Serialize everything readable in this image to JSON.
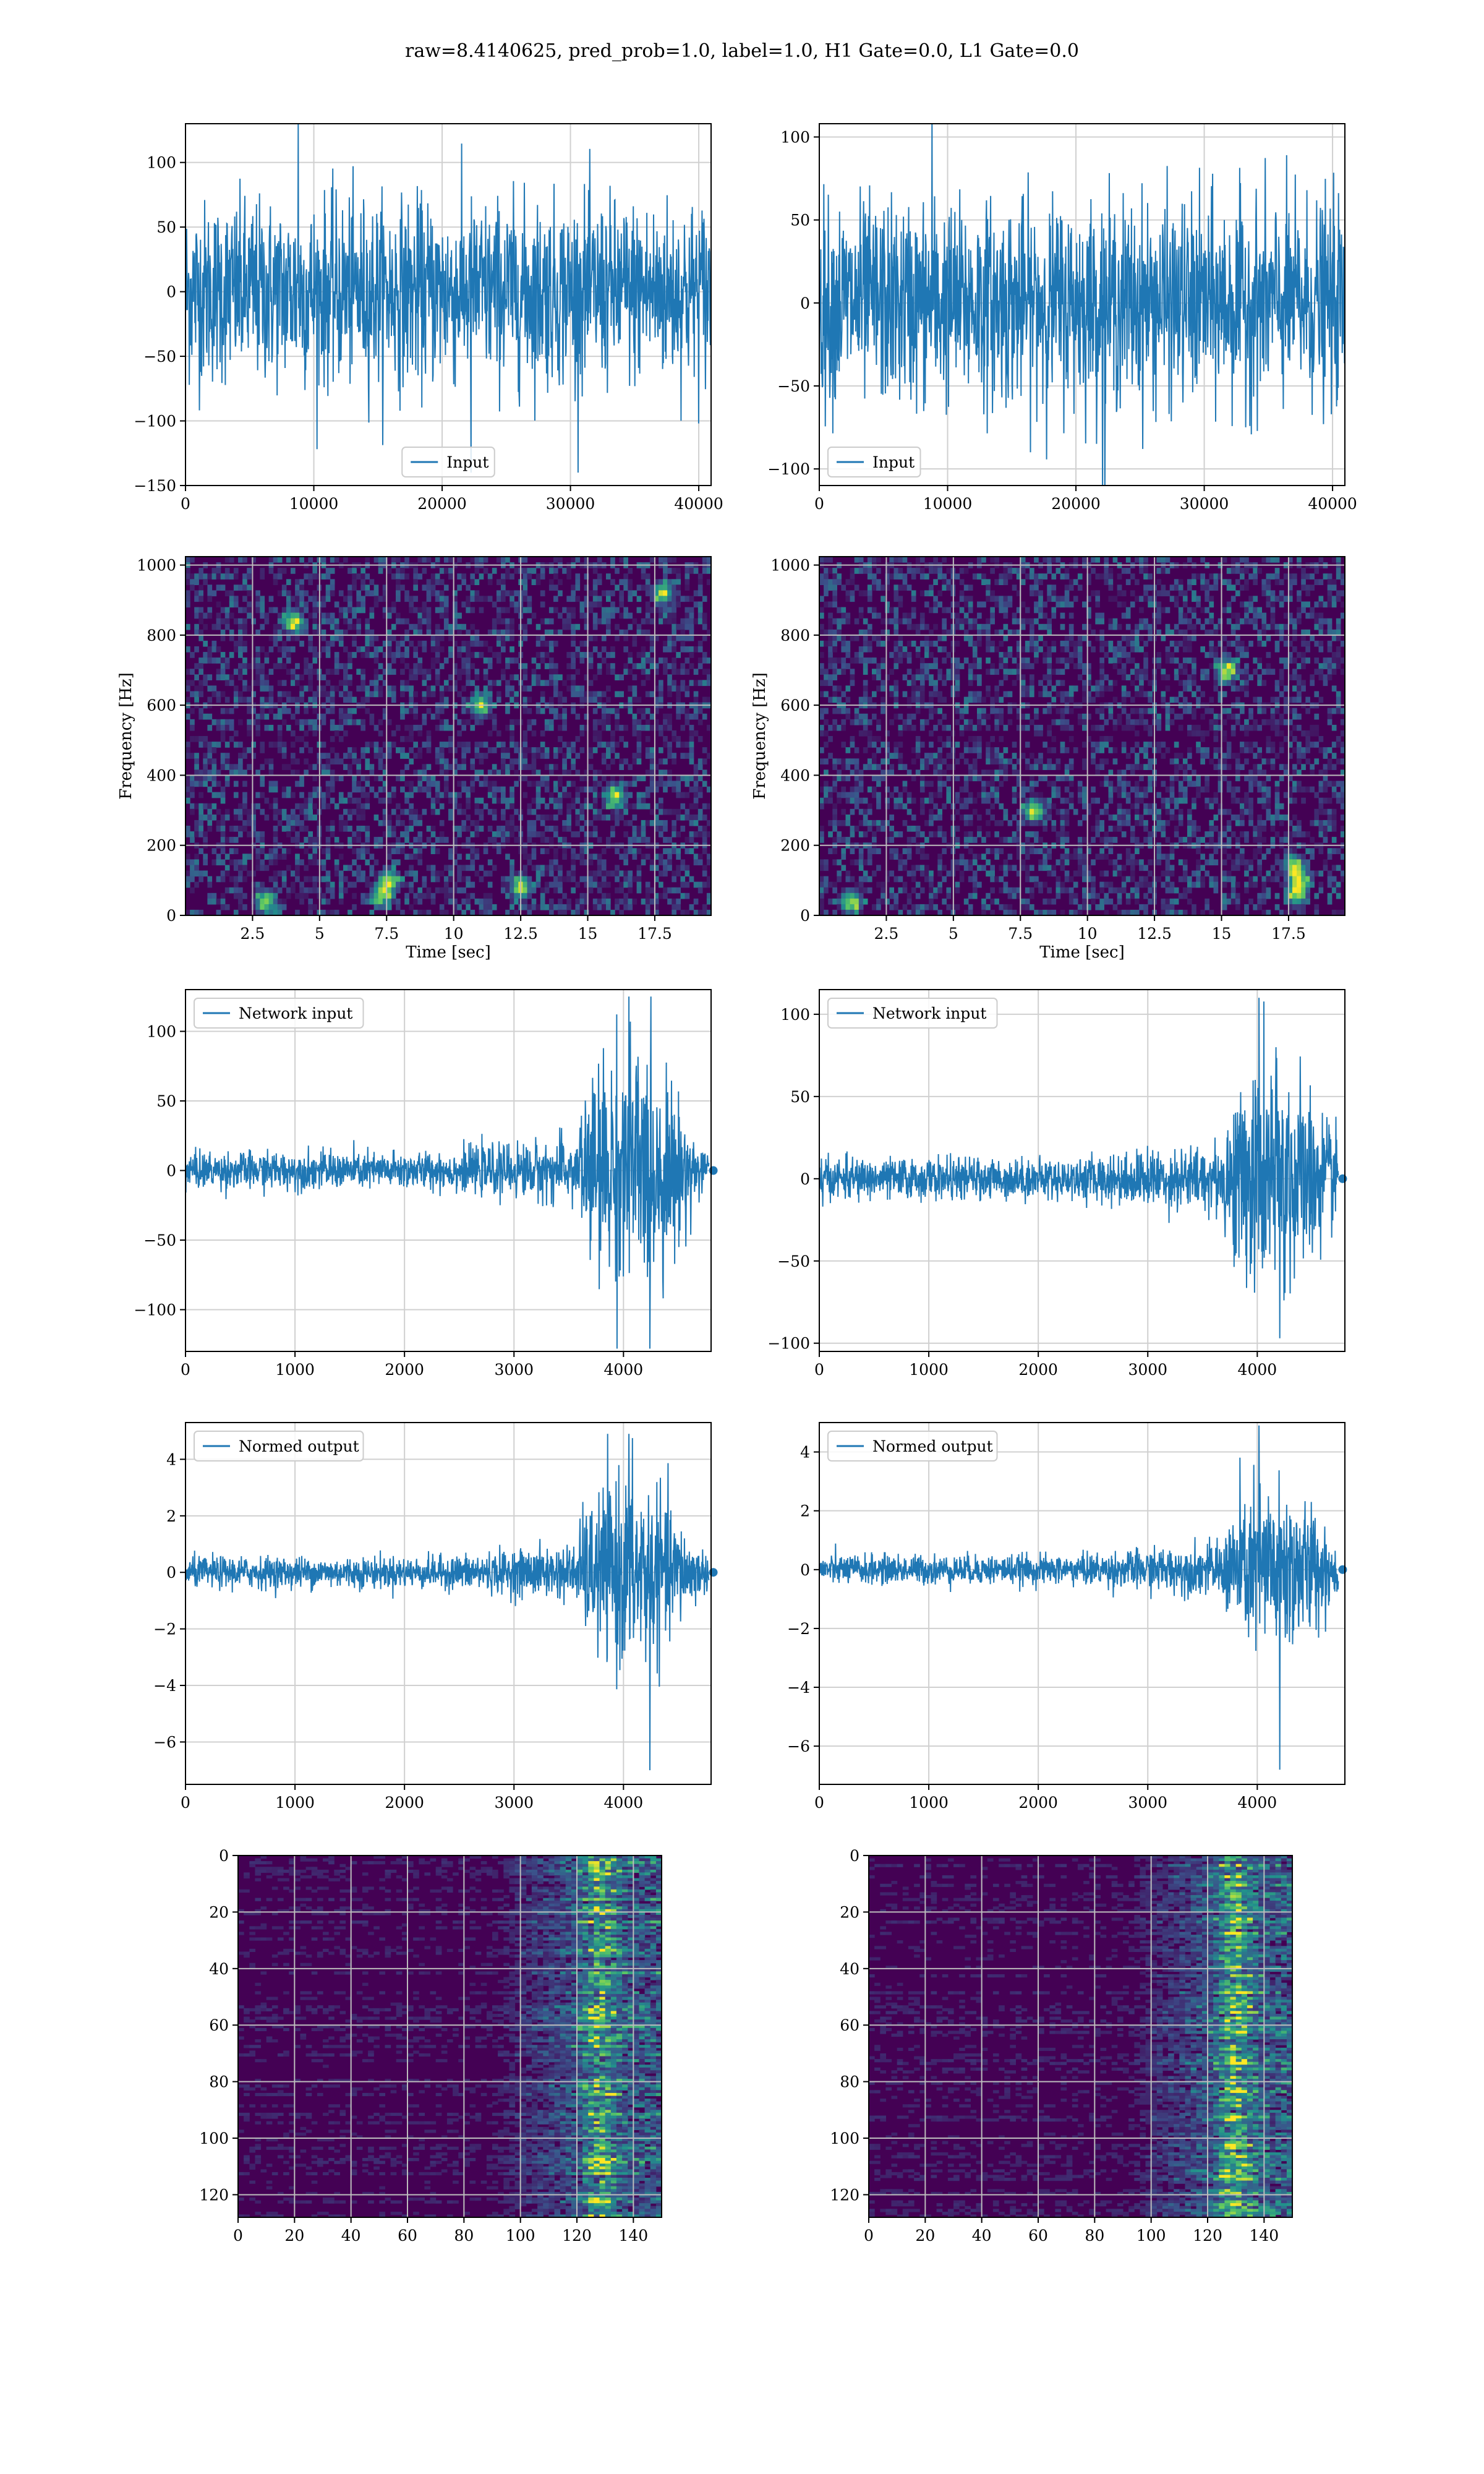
{
  "figure": {
    "suptitle": "raw=8.4140625, pred_prob=1.0, label=1.0, H1 Gate=0.0, L1 Gate=0.0"
  },
  "colors": {
    "line": "#1f77b4",
    "grid": "#d0d0d0",
    "viridis_dark": "#440154",
    "viridis_mid": "#21918c",
    "viridis_bright": "#fde725"
  },
  "chart_data": [
    {
      "type": "line",
      "id": "raw-h1",
      "column": 0,
      "row": 0,
      "legend": [
        "Input"
      ],
      "legend_loc": "lower center",
      "xlim": [
        0,
        40960
      ],
      "ylim": [
        -150,
        130
      ],
      "xticks": [
        0,
        10000,
        20000,
        30000,
        40000
      ],
      "yticks": [
        -150,
        -100,
        -50,
        0,
        50,
        100
      ],
      "signal": {
        "kind": "noise",
        "amp": 35,
        "peak": 130,
        "trough": -140
      }
    },
    {
      "type": "line",
      "id": "raw-l1",
      "column": 1,
      "row": 0,
      "legend": [
        "Input"
      ],
      "legend_loc": "lower left",
      "xlim": [
        0,
        40960
      ],
      "ylim": [
        -110,
        108
      ],
      "xticks": [
        0,
        10000,
        20000,
        30000,
        40000
      ],
      "yticks": [
        -100,
        -50,
        0,
        50,
        100
      ],
      "signal": {
        "kind": "noise",
        "amp": 30,
        "peak": 115,
        "trough": -120
      }
    },
    {
      "type": "heatmap",
      "id": "spec-h1",
      "column": 0,
      "row": 1,
      "xlabel": "Time [sec]",
      "ylabel": "Frequency [Hz]",
      "xlim": [
        0,
        19.6
      ],
      "ylim": [
        0,
        1024
      ],
      "xticks": [
        2.5,
        5.0,
        7.5,
        10.0,
        12.5,
        15.0,
        17.5
      ],
      "yticks": [
        0,
        200,
        400,
        600,
        800,
        1000
      ],
      "hotspots": [
        [
          3.0,
          40
        ],
        [
          7.3,
          60
        ],
        [
          7.6,
          100
        ],
        [
          16.0,
          340
        ],
        [
          11.0,
          600
        ],
        [
          12.5,
          80
        ],
        [
          4.0,
          840
        ],
        [
          17.8,
          920
        ]
      ]
    },
    {
      "type": "heatmap",
      "id": "spec-l1",
      "column": 1,
      "row": 1,
      "xlabel": "Time [sec]",
      "ylabel": "Frequency [Hz]",
      "xlim": [
        0,
        19.6
      ],
      "ylim": [
        0,
        1024
      ],
      "xticks": [
        2.5,
        5.0,
        7.5,
        10.0,
        12.5,
        15.0,
        17.5
      ],
      "yticks": [
        0,
        200,
        400,
        600,
        800,
        1000
      ],
      "hotspots": [
        [
          1.2,
          40
        ],
        [
          17.8,
          60
        ],
        [
          17.9,
          100
        ],
        [
          17.7,
          140
        ],
        [
          15.2,
          700
        ],
        [
          8.0,
          300
        ]
      ]
    },
    {
      "type": "line",
      "id": "net-h1",
      "column": 0,
      "row": 2,
      "legend": [
        "Network input"
      ],
      "legend_loc": "upper left",
      "xlim": [
        0,
        4800
      ],
      "ylim": [
        -130,
        130
      ],
      "xticks": [
        0,
        1000,
        2000,
        3000,
        4000,
        5000
      ],
      "yticks": [
        -100,
        -50,
        0,
        50,
        100
      ],
      "signal": {
        "kind": "chirp",
        "n": 4780,
        "base": 12,
        "rise_start": 2300,
        "burst_start": 3600,
        "burst_amp": 75,
        "peak": 125,
        "trough": -128
      }
    },
    {
      "type": "line",
      "id": "net-l1",
      "column": 1,
      "row": 2,
      "legend": [
        "Network input"
      ],
      "legend_loc": "upper left",
      "xlim": [
        0,
        4800
      ],
      "ylim": [
        -105,
        115
      ],
      "xticks": [
        0,
        1000,
        2000,
        3000,
        4000,
        5000
      ],
      "yticks": [
        -100,
        -50,
        0,
        50,
        100
      ],
      "signal": {
        "kind": "chirp",
        "n": 4740,
        "base": 11,
        "rise_start": 2300,
        "burst_start": 3700,
        "burst_amp": 60,
        "peak": 110,
        "trough": -97
      }
    },
    {
      "type": "line",
      "id": "norm-h1",
      "column": 0,
      "row": 3,
      "legend": [
        "Normed output"
      ],
      "legend_loc": "upper left",
      "xlim": [
        0,
        4800
      ],
      "ylim": [
        -7.5,
        5.3
      ],
      "xticks": [
        0,
        1000,
        2000,
        3000,
        4000,
        5000
      ],
      "yticks": [
        -6,
        -4,
        -2,
        0,
        2,
        4
      ],
      "signal": {
        "kind": "chirp",
        "n": 4780,
        "base": 0.5,
        "rise_start": 2300,
        "burst_start": 3600,
        "burst_amp": 2.8,
        "peak": 4.9,
        "trough": -7.0
      }
    },
    {
      "type": "line",
      "id": "norm-l1",
      "column": 1,
      "row": 3,
      "legend": [
        "Normed output"
      ],
      "legend_loc": "upper left",
      "xlim": [
        0,
        4800
      ],
      "ylim": [
        -7.3,
        5.0
      ],
      "xticks": [
        0,
        1000,
        2000,
        3000,
        4000,
        5000
      ],
      "yticks": [
        -6,
        -4,
        -2,
        0,
        2,
        4
      ],
      "signal": {
        "kind": "chirp",
        "n": 4740,
        "base": 0.45,
        "rise_start": 2300,
        "burst_start": 3700,
        "burst_amp": 2.5,
        "peak": 4.9,
        "trough": -6.8
      }
    },
    {
      "type": "heatmap",
      "id": "feat-h1",
      "column": 0,
      "row": 4,
      "xlim": [
        0,
        150
      ],
      "ylim": [
        0,
        128
      ],
      "y_inverted": true,
      "xticks": [
        0,
        20,
        40,
        60,
        80,
        100,
        120,
        140
      ],
      "yticks": [
        0,
        20,
        40,
        60,
        80,
        100,
        120
      ],
      "active_cols": [
        90,
        150
      ],
      "peak_col": 128
    },
    {
      "type": "heatmap",
      "id": "feat-l1",
      "column": 1,
      "row": 4,
      "xlim": [
        0,
        150
      ],
      "ylim": [
        0,
        128
      ],
      "y_inverted": true,
      "xticks": [
        0,
        20,
        40,
        60,
        80,
        100,
        120,
        140
      ],
      "yticks": [
        0,
        20,
        40,
        60,
        80,
        100,
        120
      ],
      "active_cols": [
        92,
        150
      ],
      "peak_col": 130
    }
  ]
}
